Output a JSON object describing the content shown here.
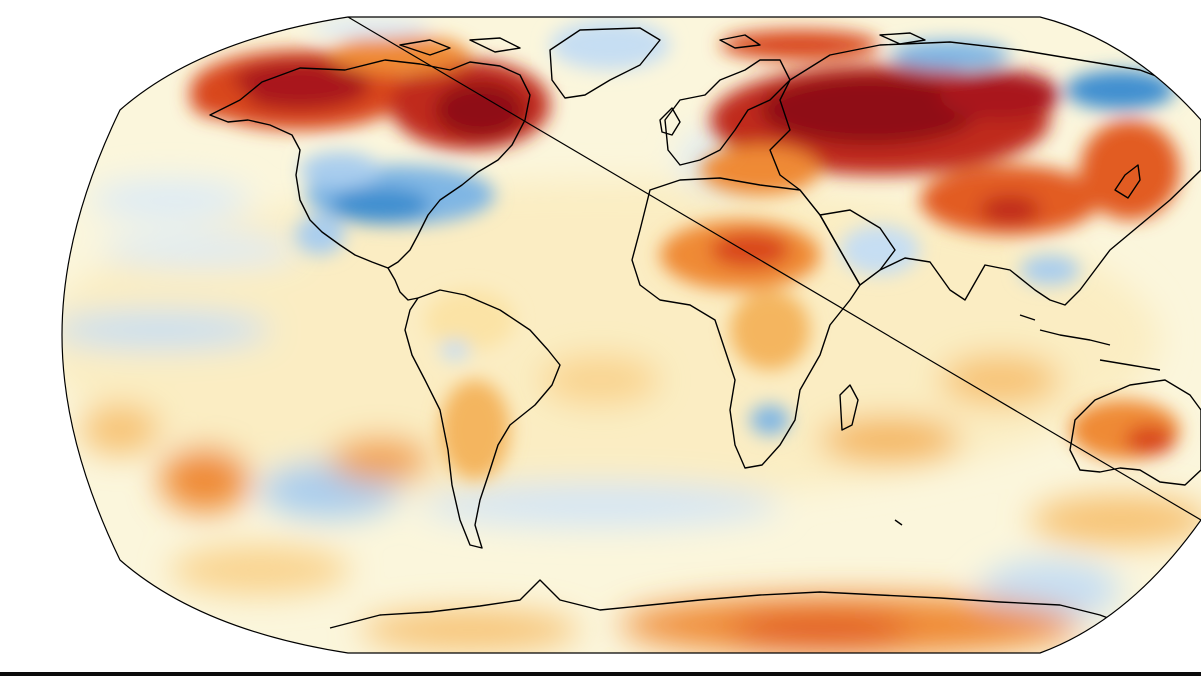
{
  "map": {
    "projection": "robinson",
    "kind": "global temperature anomaly",
    "legend_shown": false,
    "title_shown": false,
    "coastline_color": "#000000",
    "palette": {
      "deep_cold": "#3f8fd0",
      "cold": "#7fb6e4",
      "cool": "#c6def3",
      "neutral": "#fbf6dc",
      "mild_warm": "#fbe3a6",
      "warm": "#f7c374",
      "hot": "#ef8a34",
      "very_hot": "#d9461f",
      "extreme": "#a9151a"
    }
  }
}
